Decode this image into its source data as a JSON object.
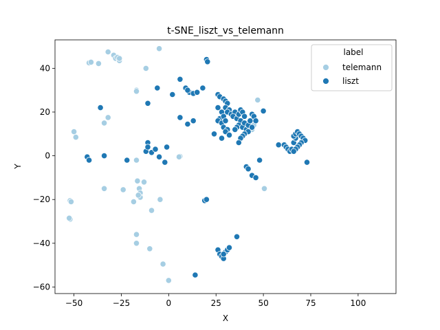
{
  "chart_data": {
    "type": "scatter",
    "title": "t-SNE_liszt_vs_telemann",
    "xlabel": "X",
    "ylabel": "Y",
    "xlim": [
      -60,
      120
    ],
    "ylim": [
      -63,
      53
    ],
    "xticks": [
      -50,
      -25,
      0,
      25,
      50,
      75,
      100
    ],
    "yticks": [
      -60,
      -40,
      -20,
      0,
      20,
      40
    ],
    "legend": {
      "title": "label",
      "placement": "top-right"
    },
    "series": [
      {
        "name": "telemann",
        "color": "#a6cee3",
        "points": [
          [
            -32,
            47.5
          ],
          [
            -29,
            46
          ],
          [
            -28,
            44.5
          ],
          [
            -27,
            45
          ],
          [
            -26,
            43.5
          ],
          [
            -26,
            44.5
          ],
          [
            -42,
            42.5
          ],
          [
            -37,
            42.2
          ],
          [
            -41,
            42.8
          ],
          [
            -5,
            49
          ],
          [
            -12,
            40
          ],
          [
            -17,
            30
          ],
          [
            -17,
            29.5
          ],
          [
            -50,
            11
          ],
          [
            -49,
            8.5
          ],
          [
            -34,
            15
          ],
          [
            -32,
            17.5
          ],
          [
            -17,
            -2
          ],
          [
            6,
            -0.3
          ],
          [
            5.5,
            -0.5
          ],
          [
            -15.5,
            -15
          ],
          [
            -16.5,
            -11.5
          ],
          [
            -13,
            -12
          ],
          [
            -15,
            -17
          ],
          [
            -15,
            -19
          ],
          [
            -16,
            -18
          ],
          [
            -24,
            -15.5
          ],
          [
            -18.5,
            -21
          ],
          [
            -4.5,
            -20
          ],
          [
            -34,
            -15
          ],
          [
            -52,
            -20.5
          ],
          [
            -51.5,
            -21
          ],
          [
            -9,
            -25
          ],
          [
            -52,
            -29
          ],
          [
            -52.5,
            -28.5
          ],
          [
            -17,
            -36
          ],
          [
            -17,
            -40
          ],
          [
            -10,
            -42.5
          ],
          [
            -3,
            -49.5
          ],
          [
            0,
            -57
          ],
          [
            47,
            25.5
          ],
          [
            50.5,
            -15
          ],
          [
            44,
            12
          ],
          [
            45,
            14
          ],
          [
            43,
            16
          ]
        ]
      },
      {
        "name": "liszt",
        "color": "#1f78b4",
        "points": [
          [
            -36,
            22
          ],
          [
            -43,
            -0.5
          ],
          [
            -42,
            -2
          ],
          [
            -34,
            0
          ],
          [
            -22,
            -2
          ],
          [
            -12,
            2
          ],
          [
            -11,
            6
          ],
          [
            -11,
            4
          ],
          [
            -9,
            1.5
          ],
          [
            -7,
            3
          ],
          [
            -5,
            -0.5
          ],
          [
            -2,
            -3
          ],
          [
            -1,
            4
          ],
          [
            -6,
            31
          ],
          [
            -11,
            24
          ],
          [
            2,
            28
          ],
          [
            6,
            35
          ],
          [
            9,
            31
          ],
          [
            11,
            29
          ],
          [
            10,
            30
          ],
          [
            13,
            28.5
          ],
          [
            15,
            29
          ],
          [
            18,
            31
          ],
          [
            20,
            44
          ],
          [
            20.5,
            43
          ],
          [
            6,
            17.5
          ],
          [
            10,
            14.5
          ],
          [
            13,
            16
          ],
          [
            19,
            -20.5
          ],
          [
            20,
            -20
          ],
          [
            24,
            10
          ],
          [
            26,
            28
          ],
          [
            27,
            27
          ],
          [
            26,
            22
          ],
          [
            28,
            20
          ],
          [
            27,
            17
          ],
          [
            29,
            18
          ],
          [
            26,
            16
          ],
          [
            28,
            15
          ],
          [
            30,
            16
          ],
          [
            29,
            13
          ],
          [
            31,
            12
          ],
          [
            30,
            11
          ],
          [
            32,
            9.5
          ],
          [
            28,
            8
          ],
          [
            29,
            26
          ],
          [
            30,
            25
          ],
          [
            31,
            24
          ],
          [
            30,
            22
          ],
          [
            32,
            21
          ],
          [
            31,
            20
          ],
          [
            33,
            19
          ],
          [
            35,
            20
          ],
          [
            34,
            18
          ],
          [
            36,
            17
          ],
          [
            37,
            19
          ],
          [
            38,
            21
          ],
          [
            39,
            20
          ],
          [
            40,
            18
          ],
          [
            38,
            16
          ],
          [
            37,
            14
          ],
          [
            36,
            13
          ],
          [
            35,
            12
          ],
          [
            39,
            13
          ],
          [
            40,
            15
          ],
          [
            41,
            12
          ],
          [
            42,
            14
          ],
          [
            43,
            16
          ],
          [
            44,
            19
          ],
          [
            45,
            18
          ],
          [
            46,
            16
          ],
          [
            44,
            13
          ],
          [
            42,
            11
          ],
          [
            40,
            10
          ],
          [
            39,
            9
          ],
          [
            38,
            8
          ],
          [
            37,
            6
          ],
          [
            41,
            -5
          ],
          [
            42,
            -6
          ],
          [
            44,
            -9
          ],
          [
            46,
            -10
          ],
          [
            48,
            -2
          ],
          [
            50,
            20.5
          ],
          [
            58,
            5
          ],
          [
            61,
            5
          ],
          [
            62,
            4
          ],
          [
            63,
            3
          ],
          [
            64,
            2
          ],
          [
            65,
            3
          ],
          [
            66,
            6
          ],
          [
            67,
            8
          ],
          [
            66,
            9
          ],
          [
            67,
            10
          ],
          [
            68,
            11
          ],
          [
            69,
            10
          ],
          [
            70,
            9
          ],
          [
            71,
            8
          ],
          [
            72,
            7
          ],
          [
            70,
            6
          ],
          [
            69,
            5
          ],
          [
            68,
            4
          ],
          [
            67,
            3
          ],
          [
            66,
            2
          ],
          [
            73,
            -3
          ],
          [
            36,
            -37
          ],
          [
            14,
            -54.5
          ],
          [
            26,
            -43
          ],
          [
            27,
            -45
          ],
          [
            28,
            -46
          ],
          [
            29,
            -47
          ],
          [
            30,
            -44
          ],
          [
            31,
            -43
          ],
          [
            32,
            -42
          ],
          [
            29,
            -45
          ]
        ]
      }
    ]
  }
}
